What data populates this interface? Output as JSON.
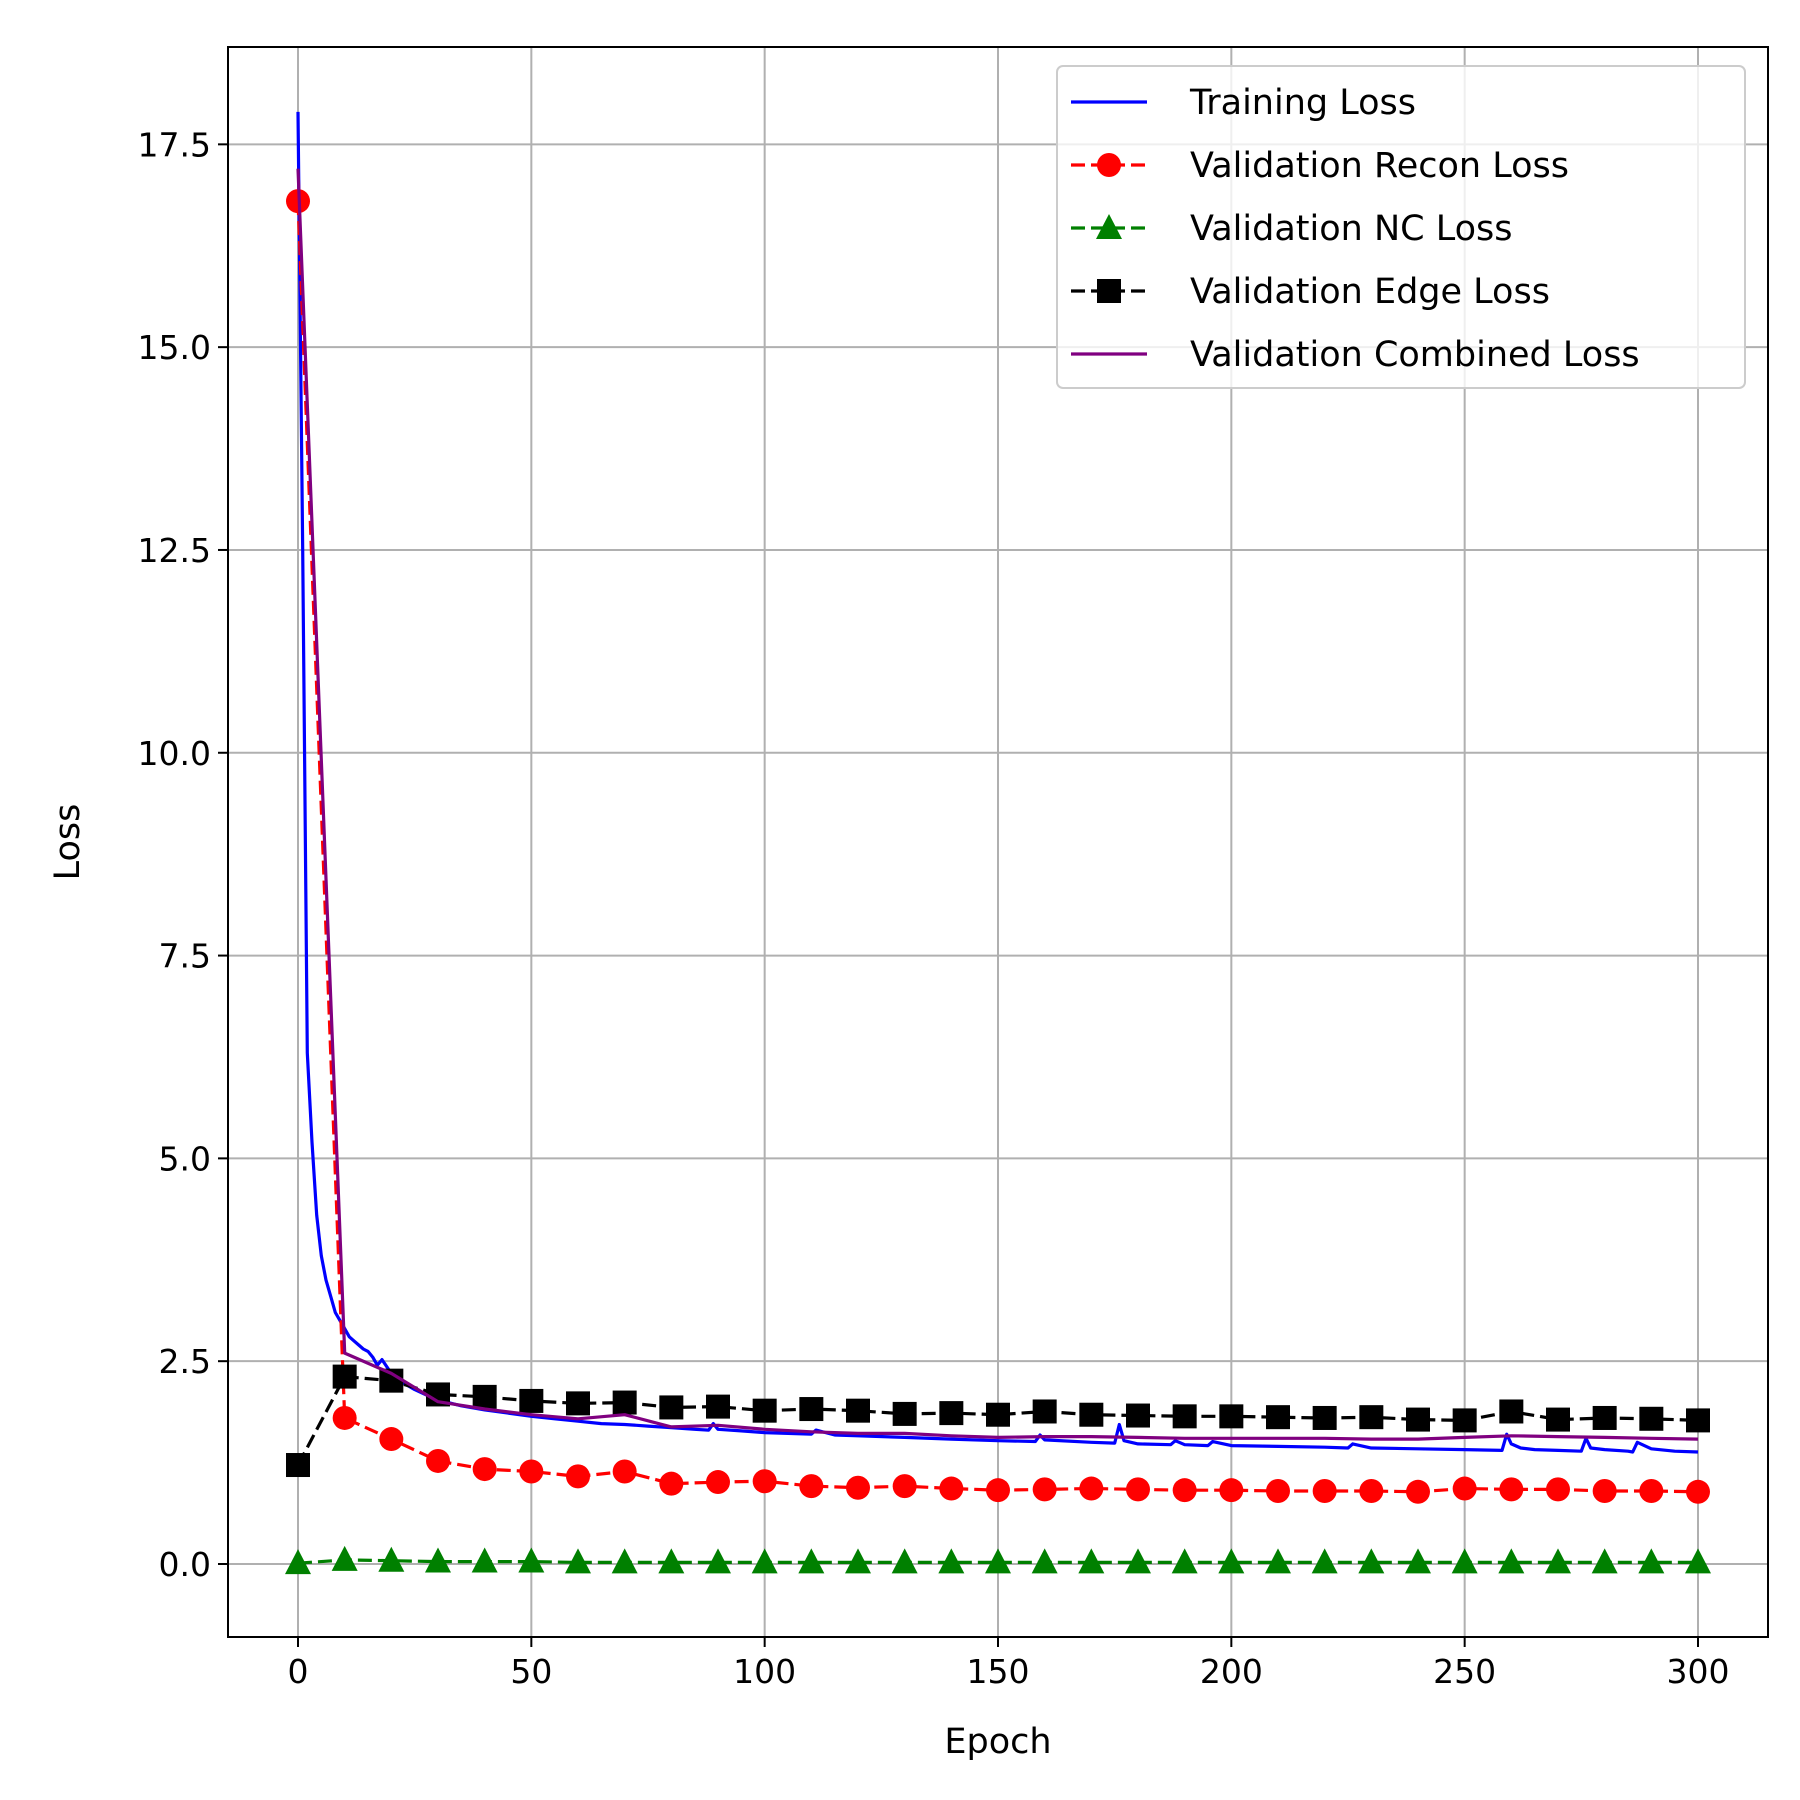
{
  "chart_data": {
    "type": "line",
    "title": "",
    "xlabel": "Epoch",
    "ylabel": "Loss",
    "xlim": [
      -15,
      315
    ],
    "ylim": [
      -0.9,
      18.7
    ],
    "xticks": [
      0,
      50,
      100,
      150,
      200,
      250,
      300
    ],
    "xtick_labels": [
      "0",
      "50",
      "100",
      "150",
      "200",
      "250",
      "300"
    ],
    "yticks": [
      0.0,
      2.5,
      5.0,
      7.5,
      10.0,
      12.5,
      15.0,
      17.5
    ],
    "ytick_labels": [
      "0.0",
      "2.5",
      "5.0",
      "7.5",
      "10.0",
      "12.5",
      "15.0",
      "17.5"
    ],
    "grid": true,
    "legend_position": "top-right",
    "series": [
      {
        "name": "Training Loss",
        "color": "#0000ff",
        "style": "solid",
        "marker": "none",
        "x": [
          0,
          1,
          2,
          3,
          4,
          5,
          6,
          7,
          8,
          9,
          10,
          11,
          12,
          13,
          14,
          15,
          16,
          17,
          18,
          20,
          22,
          25,
          28,
          30,
          35,
          40,
          45,
          50,
          55,
          60,
          65,
          70,
          75,
          80,
          85,
          88,
          89,
          90,
          95,
          100,
          105,
          110,
          111,
          115,
          120,
          130,
          140,
          150,
          158,
          159,
          160,
          170,
          175,
          176,
          177,
          180,
          187,
          188,
          190,
          195,
          196,
          200,
          210,
          220,
          225,
          226,
          230,
          240,
          250,
          258,
          259,
          260,
          262,
          265,
          270,
          275,
          276,
          277,
          280,
          285,
          286,
          287,
          290,
          295,
          300
        ],
        "y": [
          17.9,
          12.5,
          6.3,
          5.2,
          4.3,
          3.8,
          3.5,
          3.3,
          3.1,
          3.0,
          2.9,
          2.8,
          2.75,
          2.7,
          2.65,
          2.62,
          2.55,
          2.45,
          2.52,
          2.35,
          2.25,
          2.15,
          2.07,
          2.02,
          1.95,
          1.9,
          1.86,
          1.82,
          1.79,
          1.76,
          1.73,
          1.72,
          1.7,
          1.68,
          1.66,
          1.65,
          1.73,
          1.66,
          1.64,
          1.62,
          1.61,
          1.6,
          1.65,
          1.59,
          1.58,
          1.56,
          1.54,
          1.52,
          1.51,
          1.59,
          1.53,
          1.5,
          1.49,
          1.72,
          1.52,
          1.48,
          1.47,
          1.52,
          1.47,
          1.46,
          1.51,
          1.46,
          1.45,
          1.44,
          1.43,
          1.48,
          1.43,
          1.42,
          1.41,
          1.4,
          1.6,
          1.48,
          1.43,
          1.41,
          1.4,
          1.39,
          1.55,
          1.43,
          1.41,
          1.39,
          1.38,
          1.5,
          1.42,
          1.39,
          1.38
        ]
      },
      {
        "name": "Validation Recon Loss",
        "color": "#ff0000",
        "style": "dashed",
        "marker": "circle",
        "x": [
          0,
          10,
          20,
          30,
          40,
          50,
          60,
          70,
          80,
          90,
          100,
          110,
          120,
          130,
          140,
          150,
          160,
          170,
          180,
          190,
          200,
          210,
          220,
          230,
          240,
          250,
          260,
          270,
          280,
          290,
          300
        ],
        "y": [
          16.8,
          1.8,
          1.54,
          1.27,
          1.17,
          1.14,
          1.08,
          1.14,
          0.99,
          1.01,
          1.02,
          0.96,
          0.94,
          0.96,
          0.93,
          0.91,
          0.92,
          0.93,
          0.92,
          0.91,
          0.91,
          0.9,
          0.9,
          0.9,
          0.89,
          0.93,
          0.92,
          0.92,
          0.9,
          0.9,
          0.89
        ]
      },
      {
        "name": "Validation NC Loss",
        "color": "#008000",
        "style": "dashed",
        "marker": "triangle",
        "x": [
          0,
          10,
          20,
          30,
          40,
          50,
          60,
          70,
          80,
          90,
          100,
          110,
          120,
          130,
          140,
          150,
          160,
          170,
          180,
          190,
          200,
          210,
          220,
          230,
          240,
          250,
          260,
          270,
          280,
          290,
          300
        ],
        "y": [
          0.01,
          0.05,
          0.04,
          0.03,
          0.03,
          0.03,
          0.02,
          0.02,
          0.02,
          0.02,
          0.02,
          0.02,
          0.02,
          0.02,
          0.02,
          0.02,
          0.02,
          0.02,
          0.02,
          0.02,
          0.02,
          0.02,
          0.02,
          0.02,
          0.02,
          0.02,
          0.02,
          0.02,
          0.02,
          0.02,
          0.02
        ]
      },
      {
        "name": "Validation Edge Loss",
        "color": "#000000",
        "style": "dashed",
        "marker": "square",
        "x": [
          0,
          10,
          20,
          30,
          40,
          50,
          60,
          70,
          80,
          90,
          100,
          110,
          120,
          130,
          140,
          150,
          160,
          170,
          180,
          190,
          200,
          210,
          220,
          230,
          240,
          250,
          260,
          270,
          280,
          290,
          300
        ],
        "y": [
          1.22,
          2.31,
          2.26,
          2.09,
          2.06,
          2.01,
          1.98,
          1.99,
          1.93,
          1.94,
          1.89,
          1.91,
          1.89,
          1.85,
          1.86,
          1.84,
          1.88,
          1.84,
          1.83,
          1.82,
          1.82,
          1.81,
          1.8,
          1.81,
          1.78,
          1.77,
          1.88,
          1.78,
          1.8,
          1.79,
          1.77
        ]
      },
      {
        "name": "Validation Combined Loss",
        "color": "#800080",
        "style": "solid",
        "marker": "none",
        "x": [
          0,
          10,
          20,
          30,
          40,
          50,
          60,
          70,
          80,
          90,
          100,
          110,
          120,
          130,
          140,
          150,
          160,
          170,
          180,
          190,
          200,
          210,
          220,
          230,
          240,
          250,
          260,
          270,
          280,
          290,
          300
        ],
        "y": [
          17.2,
          2.6,
          2.35,
          2.0,
          1.91,
          1.84,
          1.79,
          1.84,
          1.69,
          1.71,
          1.66,
          1.63,
          1.61,
          1.61,
          1.58,
          1.56,
          1.57,
          1.57,
          1.56,
          1.55,
          1.55,
          1.55,
          1.55,
          1.54,
          1.54,
          1.56,
          1.58,
          1.57,
          1.56,
          1.55,
          1.54
        ]
      }
    ]
  }
}
